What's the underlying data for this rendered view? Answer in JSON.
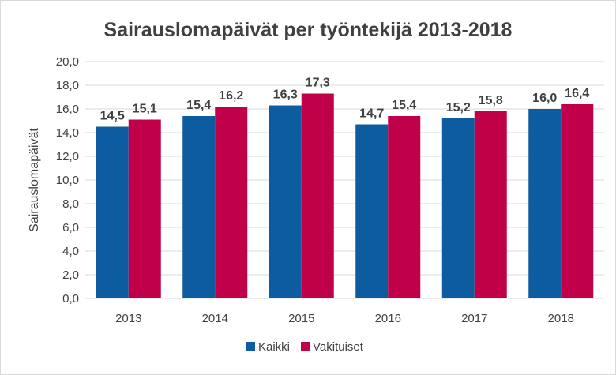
{
  "chart_data": {
    "type": "bar",
    "title": "Sairauslomapäivät per työntekijä 2013-2018",
    "ylabel": "Sairauslomapäivät",
    "xlabel": "",
    "categories": [
      "2013",
      "2014",
      "2015",
      "2016",
      "2017",
      "2018"
    ],
    "series": [
      {
        "name": "Kaikki",
        "color": "#0d5ca0",
        "values": [
          14.5,
          15.4,
          16.3,
          14.7,
          15.2,
          16.0
        ],
        "labels": [
          "14,5",
          "15,4",
          "16,3",
          "14,7",
          "15,2",
          "16,0"
        ]
      },
      {
        "name": "Vakituiset",
        "color": "#c00049",
        "values": [
          15.1,
          16.2,
          17.3,
          15.4,
          15.8,
          16.4
        ],
        "labels": [
          "15,1",
          "16,2",
          "17,3",
          "15,4",
          "15,8",
          "16,4"
        ]
      }
    ],
    "ylim": [
      0,
      20
    ],
    "yticks": [
      0,
      2,
      4,
      6,
      8,
      10,
      12,
      14,
      16,
      18,
      20
    ],
    "ytick_labels": [
      "0,0",
      "2,0",
      "4,0",
      "6,0",
      "8,0",
      "10,0",
      "12,0",
      "14,0",
      "16,0",
      "18,0",
      "20,0"
    ],
    "grid": true,
    "legend": "bottom"
  }
}
